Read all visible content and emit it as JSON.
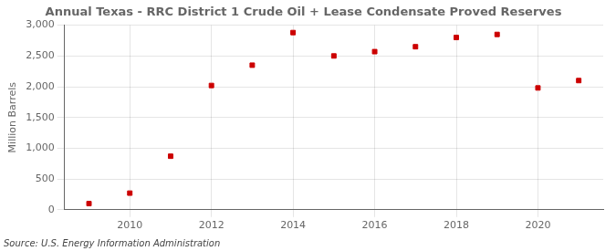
{
  "chart_data": {
    "type": "scatter",
    "title": "Annual Texas - RRC District 1 Crude Oil + Lease Condensate Proved Reserves",
    "ylabel": "Million Barrels",
    "annotations": [
      "Source: U.S. Energy Information Administration"
    ],
    "x": [
      2009,
      2010,
      2011,
      2012,
      2013,
      2014,
      2015,
      2016,
      2017,
      2018,
      2019,
      2020,
      2021
    ],
    "values": [
      100,
      270,
      870,
      2020,
      2350,
      2880,
      2500,
      2570,
      2650,
      2800,
      2850,
      1980,
      2100
    ],
    "color": "#cc0000",
    "marker": "square",
    "xlim": [
      2008.4,
      2021.6
    ],
    "xticks": [
      2010,
      2012,
      2014,
      2016,
      2018,
      2020
    ],
    "ylim": [
      0,
      3000
    ],
    "yticks": [
      0,
      500,
      {
        "value": 1000,
        "label": "1,000"
      },
      {
        "value": 1500,
        "label": "1,500"
      },
      {
        "value": 2000,
        "label": "2,000"
      },
      {
        "value": 2500,
        "label": "2,500"
      },
      {
        "value": 3000,
        "label": "3,000"
      }
    ],
    "grid": true
  }
}
